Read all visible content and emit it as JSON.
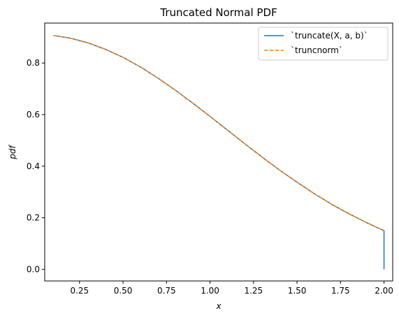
{
  "chart_data": {
    "type": "line",
    "title": "Truncated Normal PDF",
    "xlabel": "x",
    "ylabel": "pdf",
    "xlim": [
      0.05,
      2.05
    ],
    "ylim": [
      -0.045,
      0.955
    ],
    "xticks": [
      0.25,
      0.5,
      0.75,
      1.0,
      1.25,
      1.5,
      1.75,
      2.0
    ],
    "xtick_labels": [
      "0.25",
      "0.50",
      "0.75",
      "1.00",
      "1.25",
      "1.50",
      "1.75",
      "2.00"
    ],
    "yticks": [
      0.0,
      0.2,
      0.4,
      0.6,
      0.8
    ],
    "ytick_labels": [
      "0.0",
      "0.2",
      "0.4",
      "0.6",
      "0.8"
    ],
    "grid": false,
    "legend_position": "top-right",
    "series": [
      {
        "name": "`truncate(X, a, b)`",
        "color": "#1f77b4",
        "style": "solid",
        "x": [
          0.1,
          0.2,
          0.3,
          0.4,
          0.5,
          0.6,
          0.7,
          0.8,
          0.9,
          1.0,
          1.1,
          1.2,
          1.3,
          1.4,
          1.5,
          1.6,
          1.7,
          1.8,
          1.9,
          2.0,
          2.0
        ],
        "y": [
          0.907,
          0.896,
          0.878,
          0.853,
          0.822,
          0.785,
          0.742,
          0.695,
          0.645,
          0.593,
          0.54,
          0.487,
          0.435,
          0.385,
          0.338,
          0.293,
          0.252,
          0.215,
          0.181,
          0.15,
          0.0
        ]
      },
      {
        "name": "`truncnorm`",
        "color": "#ff7f0e",
        "style": "dashed",
        "x": [
          0.1,
          0.2,
          0.3,
          0.4,
          0.5,
          0.6,
          0.7,
          0.8,
          0.9,
          1.0,
          1.1,
          1.2,
          1.3,
          1.4,
          1.5,
          1.6,
          1.7,
          1.8,
          1.9,
          2.0
        ],
        "y": [
          0.907,
          0.896,
          0.878,
          0.853,
          0.822,
          0.785,
          0.742,
          0.695,
          0.645,
          0.593,
          0.54,
          0.487,
          0.435,
          0.385,
          0.338,
          0.293,
          0.252,
          0.215,
          0.181,
          0.15
        ]
      }
    ]
  }
}
